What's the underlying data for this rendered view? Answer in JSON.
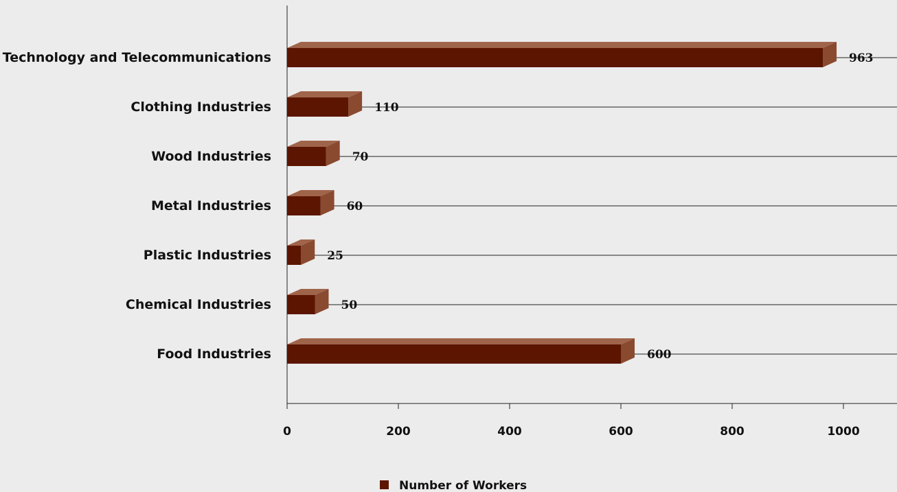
{
  "chart_data": {
    "type": "bar",
    "orientation": "horizontal",
    "style": "3d",
    "categories": [
      "Technology and Telecommunications",
      "Clothing Industries",
      "Wood Industries",
      "Metal Industries",
      "Plastic Industries",
      "Chemical Industries",
      "Food Industries"
    ],
    "series": [
      {
        "name": "Number of Workers",
        "values": [
          963,
          110,
          70,
          60,
          25,
          50,
          600
        ],
        "color": "#5c1500"
      }
    ],
    "value_labels": [
      "963",
      "110",
      "70",
      "60",
      "25",
      "50",
      "600"
    ],
    "xlim": [
      0,
      1100
    ],
    "xticks": [
      0,
      200,
      400,
      600,
      800,
      1000
    ],
    "xtick_labels": [
      "0",
      "200",
      "400",
      "600",
      "800",
      "1000"
    ],
    "grid": true,
    "legend": "bottom-center",
    "colors": {
      "bar_front": "#5c1500",
      "bar_top": "#a0644a",
      "bar_side": "#8a4a30",
      "background": "#ececec",
      "axis": "#222222"
    }
  }
}
